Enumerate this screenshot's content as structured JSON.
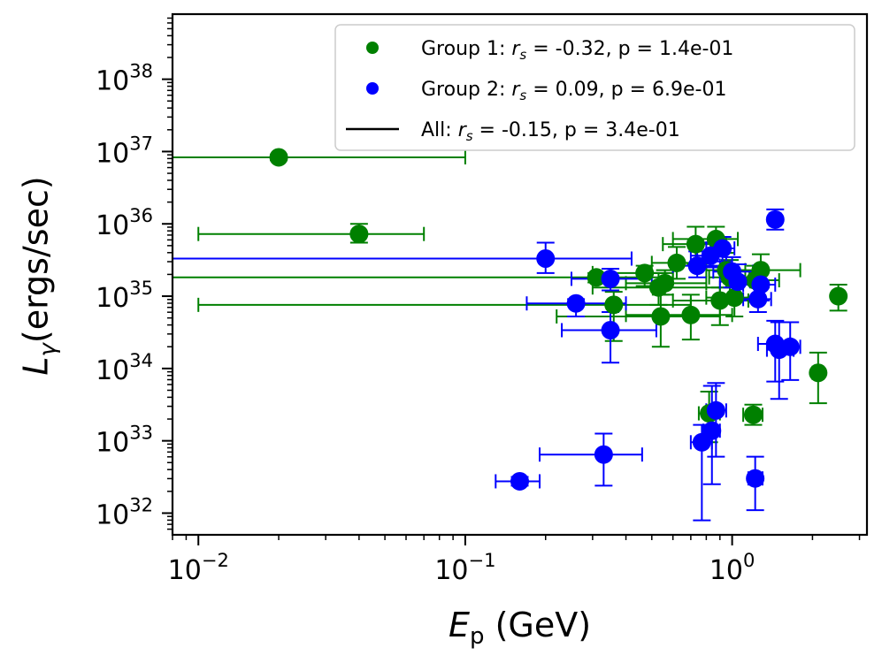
{
  "chart_data": {
    "type": "scatter",
    "xscale": "log",
    "yscale": "log",
    "xlabel_main": "E",
    "xlabel_sub": "p",
    "xlabel_unit": " (GeV)",
    "ylabel_main": "L",
    "ylabel_sub": "γ",
    "ylabel_unit": "(ergs/sec)",
    "xlim": [
      0.008,
      3.2
    ],
    "ylim_exp": [
      31.7,
      38.9
    ],
    "xticks": [
      {
        "value": 0.01,
        "base": "10",
        "exp": "−2"
      },
      {
        "value": 0.1,
        "base": "10",
        "exp": "−1"
      },
      {
        "value": 1,
        "base": "10",
        "exp": "0"
      }
    ],
    "yticks": [
      {
        "exp_value": 32,
        "base": "10",
        "exp": "32"
      },
      {
        "exp_value": 33,
        "base": "10",
        "exp": "33"
      },
      {
        "exp_value": 34,
        "base": "10",
        "exp": "34"
      },
      {
        "exp_value": 35,
        "base": "10",
        "exp": "35"
      },
      {
        "exp_value": 36,
        "base": "10",
        "exp": "36"
      },
      {
        "exp_value": 37,
        "base": "10",
        "exp": "37"
      },
      {
        "exp_value": 38,
        "base": "10",
        "exp": "38"
      }
    ],
    "legend": {
      "position": "upper right",
      "entries": [
        {
          "series": "Group 1",
          "marker": "dot",
          "prefix": "Group 1: ",
          "sym": "r",
          "symsub": "s",
          "suffix": " = -0.32, p = 1.4e-01"
        },
        {
          "series": "Group 2",
          "marker": "dot",
          "prefix": "Group 2: ",
          "sym": "r",
          "symsub": "s",
          "suffix": " = 0.09, p = 6.9e-01"
        },
        {
          "series": "All",
          "marker": "line",
          "prefix": "All: ",
          "sym": "r",
          "symsub": "s",
          "suffix": " = -0.15, p = 3.4e-01"
        }
      ]
    },
    "series": [
      {
        "name": "Group 1",
        "color": "#008000",
        "points": [
          {
            "x": 0.02,
            "y": 36.92,
            "xlo": 0.005,
            "xhi": 0.1,
            "ylo": 36.88,
            "yhi": 36.96
          },
          {
            "x": 0.04,
            "y": 35.86,
            "xlo": 0.01,
            "xhi": 0.07,
            "ylo": 35.74,
            "yhi": 36.0
          },
          {
            "x": 0.31,
            "y": 35.26,
            "xlo": 0.005,
            "xhi": 0.6,
            "ylo": 35.19,
            "yhi": 35.32
          },
          {
            "x": 0.36,
            "y": 34.88,
            "xlo": 0.01,
            "xhi": 0.7,
            "ylo": 34.38,
            "yhi": 35.06
          },
          {
            "x": 0.47,
            "y": 35.32,
            "xlo": 0.3,
            "xhi": 0.6,
            "ylo": 35.14,
            "yhi": 35.42
          },
          {
            "x": 0.53,
            "y": 35.12,
            "xlo": 0.3,
            "xhi": 0.9,
            "ylo": 34.88,
            "yhi": 35.32
          },
          {
            "x": 0.56,
            "y": 35.18,
            "xlo": 0.4,
            "xhi": 0.8,
            "ylo": 35.02,
            "yhi": 35.36
          },
          {
            "x": 0.54,
            "y": 34.72,
            "xlo": 0.22,
            "xhi": 0.9,
            "ylo": 34.3,
            "yhi": 35.02
          },
          {
            "x": 0.62,
            "y": 35.46,
            "xlo": 0.5,
            "xhi": 0.8,
            "ylo": 35.24,
            "yhi": 35.68
          },
          {
            "x": 0.7,
            "y": 34.74,
            "xlo": 0.4,
            "xhi": 1.0,
            "ylo": 34.4,
            "yhi": 35.02
          },
          {
            "x": 0.73,
            "y": 35.72,
            "xlo": 0.55,
            "xhi": 0.95,
            "ylo": 35.44,
            "yhi": 35.96
          },
          {
            "x": 0.87,
            "y": 35.79,
            "xlo": 0.6,
            "xhi": 1.05,
            "ylo": 35.58,
            "yhi": 35.96
          },
          {
            "x": 0.9,
            "y": 34.94,
            "xlo": 0.6,
            "xhi": 1.15,
            "ylo": 34.6,
            "yhi": 35.12
          },
          {
            "x": 0.95,
            "y": 35.36,
            "xlo": 0.8,
            "xhi": 1.12,
            "ylo": 35.12,
            "yhi": 35.6
          },
          {
            "x": 0.98,
            "y": 35.26,
            "xlo": 0.82,
            "xhi": 1.16,
            "ylo": 35.02,
            "yhi": 35.5
          },
          {
            "x": 1.02,
            "y": 34.98,
            "xlo": 0.8,
            "xhi": 1.25,
            "ylo": 34.72,
            "yhi": 35.2
          },
          {
            "x": 1.22,
            "y": 35.22,
            "xlo": 1.0,
            "xhi": 1.5,
            "ylo": 34.98,
            "yhi": 35.42
          },
          {
            "x": 1.28,
            "y": 35.36,
            "xlo": 1.0,
            "xhi": 1.8,
            "ylo": 35.12,
            "yhi": 35.58
          },
          {
            "x": 2.5,
            "y": 35.0,
            "xlo": 2.4,
            "xhi": 2.6,
            "ylo": 34.8,
            "yhi": 35.16
          },
          {
            "x": 2.1,
            "y": 33.94,
            "xlo": 2.0,
            "xhi": 2.2,
            "ylo": 33.52,
            "yhi": 34.22
          },
          {
            "x": 1.2,
            "y": 33.36,
            "xlo": 1.1,
            "xhi": 1.3,
            "ylo": 33.22,
            "yhi": 33.5
          },
          {
            "x": 0.82,
            "y": 33.38,
            "xlo": 0.75,
            "xhi": 0.9,
            "ylo": 32.98,
            "yhi": 33.68
          }
        ]
      },
      {
        "name": "Group 2",
        "color": "#0000ff",
        "points": [
          {
            "x": 0.2,
            "y": 35.52,
            "xlo": 0.005,
            "xhi": 0.42,
            "ylo": 35.32,
            "yhi": 35.74
          },
          {
            "x": 0.26,
            "y": 34.9,
            "xlo": 0.17,
            "xhi": 0.4,
            "ylo": 34.72,
            "yhi": 34.96
          },
          {
            "x": 0.35,
            "y": 35.24,
            "xlo": 0.25,
            "xhi": 0.5,
            "ylo": 35.08,
            "yhi": 35.38
          },
          {
            "x": 0.35,
            "y": 34.53,
            "xlo": 0.23,
            "xhi": 0.52,
            "ylo": 34.08,
            "yhi": 34.78
          },
          {
            "x": 0.33,
            "y": 32.81,
            "xlo": 0.19,
            "xhi": 0.46,
            "ylo": 32.38,
            "yhi": 33.1
          },
          {
            "x": 0.16,
            "y": 32.44,
            "xlo": 0.13,
            "xhi": 0.19,
            "ylo": 32.38,
            "yhi": 32.5
          },
          {
            "x": 0.74,
            "y": 35.42,
            "xlo": 0.6,
            "xhi": 0.9,
            "ylo": 35.26,
            "yhi": 35.62
          },
          {
            "x": 0.83,
            "y": 35.56,
            "xlo": 0.7,
            "xhi": 0.95,
            "ylo": 35.4,
            "yhi": 35.74
          },
          {
            "x": 0.92,
            "y": 35.66,
            "xlo": 0.8,
            "xhi": 1.02,
            "ylo": 35.48,
            "yhi": 35.82
          },
          {
            "x": 1.0,
            "y": 35.34,
            "xlo": 0.85,
            "xhi": 1.2,
            "ylo": 35.12,
            "yhi": 35.54
          },
          {
            "x": 1.05,
            "y": 35.2,
            "xlo": 0.9,
            "xhi": 1.25,
            "ylo": 34.94,
            "yhi": 35.44
          },
          {
            "x": 1.28,
            "y": 35.16,
            "xlo": 1.1,
            "xhi": 1.45,
            "ylo": 34.94,
            "yhi": 35.34
          },
          {
            "x": 1.25,
            "y": 34.96,
            "xlo": 1.1,
            "xhi": 1.4,
            "ylo": 34.78,
            "yhi": 35.12
          },
          {
            "x": 1.45,
            "y": 36.06,
            "xlo": 1.38,
            "xhi": 1.52,
            "ylo": 35.92,
            "yhi": 36.2
          },
          {
            "x": 1.45,
            "y": 34.34,
            "xlo": 1.25,
            "xhi": 1.65,
            "ylo": 33.82,
            "yhi": 34.66
          },
          {
            "x": 1.5,
            "y": 34.26,
            "xlo": 1.35,
            "xhi": 1.7,
            "ylo": 33.58,
            "yhi": 34.64
          },
          {
            "x": 1.65,
            "y": 34.3,
            "xlo": 1.5,
            "xhi": 1.8,
            "ylo": 33.84,
            "yhi": 34.64
          },
          {
            "x": 0.87,
            "y": 33.42,
            "xlo": 0.8,
            "xhi": 0.95,
            "ylo": 32.78,
            "yhi": 33.8
          },
          {
            "x": 0.84,
            "y": 33.14,
            "xlo": 0.78,
            "xhi": 0.9,
            "ylo": 32.4,
            "yhi": 33.76
          },
          {
            "x": 0.77,
            "y": 32.98,
            "xlo": 0.7,
            "xhi": 0.84,
            "ylo": 31.9,
            "yhi": 33.22
          },
          {
            "x": 1.22,
            "y": 32.48,
            "xlo": 1.15,
            "xhi": 1.3,
            "ylo": 32.04,
            "yhi": 32.78
          }
        ]
      }
    ]
  }
}
